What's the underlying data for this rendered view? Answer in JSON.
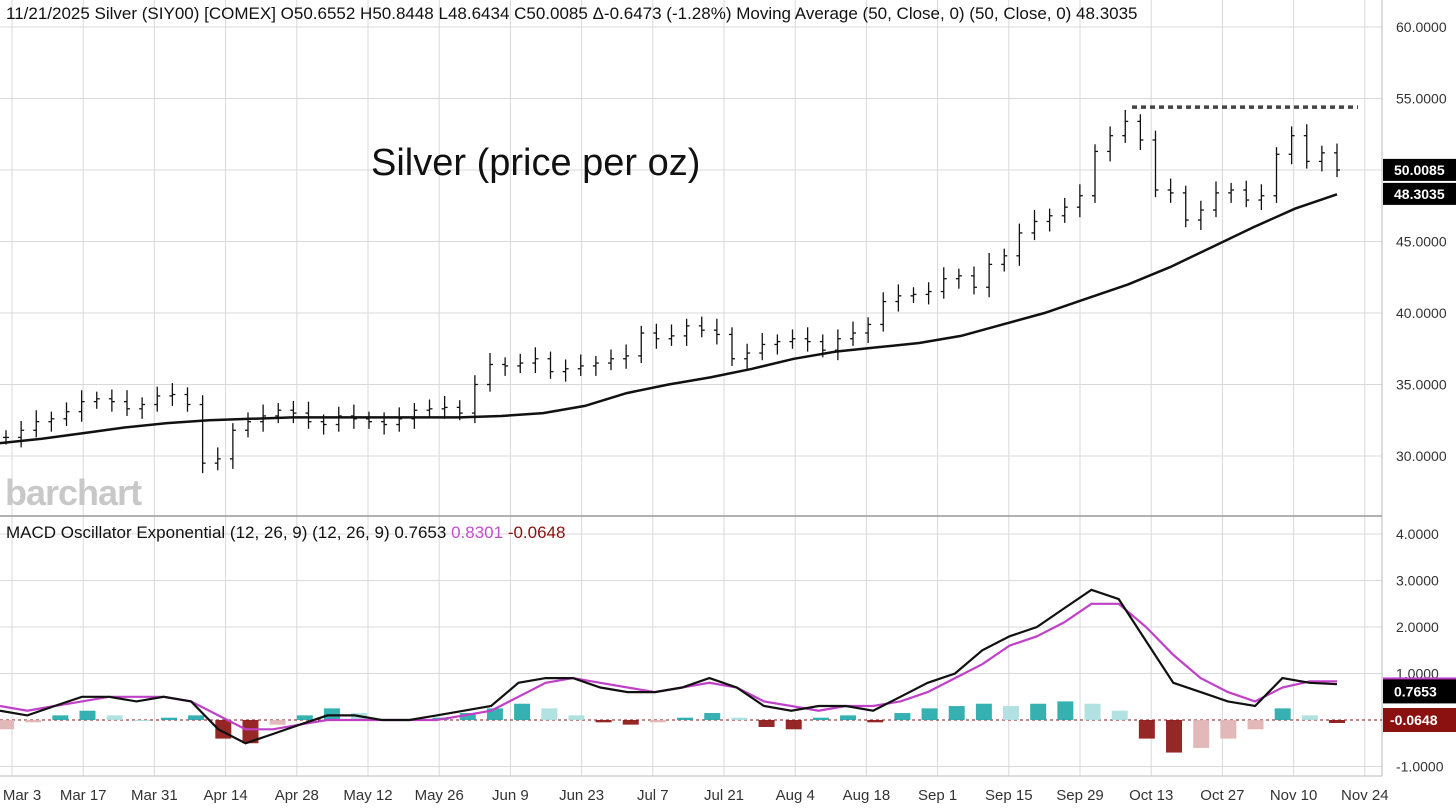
{
  "header": {
    "line": "11/21/2025 Silver (SIY00) [COMEX] O50.6552 H50.8448 L48.6434 C50.0085 Δ-0.6473 (-1.28%) Moving Average (50, Close, 0)  (50, Close, 0) 48.3035"
  },
  "annotation": "Silver (price per oz)",
  "logo": "barchart",
  "macd_header": {
    "label": "MACD Oscillator Exponential (12, 26, 9)  (12, 26, 9) 0.7653",
    "signal": "0.8301",
    "histogram": "-0.0648"
  },
  "colors": {
    "grid": "#d9d9d9",
    "price": "#111111",
    "ma": "#111111",
    "macd": "#111111",
    "signal": "#c040c8",
    "hist_pos": "#20a8a8",
    "hist_pos_light": "#a8dede",
    "hist_neg": "#8b1010",
    "hist_neg_light": "#e0b0b0",
    "resistance": "#444444"
  },
  "chart_data": [
    {
      "type": "ohlc",
      "title": "Silver (price per oz)",
      "symbol": "SIY00",
      "exchange": "COMEX",
      "date": "11/21/2025",
      "ohlc": {
        "open": 50.6552,
        "high": 50.8448,
        "low": 48.6434,
        "close": 50.0085,
        "change": -0.6473,
        "change_pct": -1.28
      },
      "y_ticks": [
        "60.0000",
        "55.0000",
        "50.0000",
        "45.0000",
        "40.0000",
        "35.0000",
        "30.0000"
      ],
      "ylim": [
        25,
        61
      ],
      "x_ticks": [
        "Mar 3",
        "Mar 17",
        "Mar 31",
        "Apr 14",
        "Apr 28",
        "May 12",
        "May 26",
        "Jun 9",
        "Jun 23",
        "Jul 7",
        "Jul 21",
        "Aug 4",
        "Aug 18",
        "Sep 1",
        "Sep 15",
        "Sep 29",
        "Oct 13",
        "Oct 27",
        "Nov 10",
        "Nov 24"
      ],
      "last_price_label": "50.0085",
      "ma_label": "48.3035",
      "resistance_level": 54.4,
      "price_close": [
        31.3,
        31.8,
        32.4,
        32.6,
        33.1,
        33.8,
        34.0,
        33.8,
        33.3,
        33.6,
        34.2,
        34.3,
        33.6,
        29.5,
        29.8,
        31.8,
        32.4,
        32.8,
        33.2,
        33.0,
        32.4,
        32.2,
        32.8,
        32.6,
        32.4,
        32.2,
        32.6,
        33.2,
        33.3,
        33.4,
        33.0,
        35.0,
        36.4,
        36.3,
        36.5,
        36.8,
        35.9,
        36.1,
        36.3,
        36.5,
        36.8,
        37.0,
        38.6,
        38.2,
        38.4,
        39.1,
        38.8,
        38.5,
        36.8,
        37.2,
        37.8,
        38.0,
        38.2,
        38.0,
        37.4,
        38.2,
        38.6,
        39.2,
        40.8,
        41.2,
        41.3,
        41.5,
        42.4,
        42.6,
        41.8,
        43.4,
        44.0,
        45.6,
        46.4,
        46.8,
        47.4,
        48.2,
        51.3,
        52.4,
        53.4,
        52.1,
        48.6,
        48.4,
        46.5,
        47.2,
        48.4,
        48.6,
        47.9,
        48.2,
        51.1,
        52.4,
        50.6,
        51.2,
        50.0
      ],
      "ma50": [
        30.9,
        31.2,
        31.6,
        32.0,
        32.3,
        32.5,
        32.6,
        32.7,
        32.7,
        32.7,
        32.7,
        32.7,
        32.8,
        33.0,
        33.5,
        34.4,
        35.0,
        35.5,
        36.1,
        36.8,
        37.3,
        37.6,
        37.9,
        38.4,
        39.2,
        40.0,
        41.0,
        42.0,
        43.2,
        44.6,
        46.0,
        47.3,
        48.3
      ]
    },
    {
      "type": "line",
      "title": "MACD Oscillator Exponential (12, 26, 9)",
      "y_ticks": [
        "4.0000",
        "3.0000",
        "2.0000",
        "1.0000",
        "-1.0000"
      ],
      "ylim": [
        -1.2,
        4.1
      ],
      "series": [
        {
          "name": "MACD",
          "last": 0.7653
        },
        {
          "name": "Signal",
          "last": 0.8301
        },
        {
          "name": "Histogram",
          "last": -0.0648
        }
      ],
      "macd": [
        0.2,
        0.1,
        0.3,
        0.5,
        0.5,
        0.4,
        0.5,
        0.4,
        -0.2,
        -0.5,
        -0.3,
        -0.1,
        0.1,
        0.1,
        0.0,
        0.0,
        0.1,
        0.2,
        0.3,
        0.8,
        0.9,
        0.9,
        0.7,
        0.6,
        0.6,
        0.7,
        0.9,
        0.7,
        0.3,
        0.2,
        0.3,
        0.3,
        0.2,
        0.5,
        0.8,
        1.0,
        1.5,
        1.8,
        2.0,
        2.4,
        2.8,
        2.6,
        1.7,
        0.8,
        0.6,
        0.4,
        0.3,
        0.9,
        0.8,
        0.77
      ],
      "signal": [
        0.3,
        0.2,
        0.3,
        0.4,
        0.5,
        0.5,
        0.5,
        0.4,
        0.1,
        -0.2,
        -0.2,
        -0.1,
        0.0,
        0.0,
        0.0,
        0.0,
        0.0,
        0.1,
        0.2,
        0.5,
        0.8,
        0.9,
        0.8,
        0.7,
        0.6,
        0.7,
        0.8,
        0.7,
        0.4,
        0.3,
        0.2,
        0.3,
        0.3,
        0.4,
        0.6,
        0.9,
        1.2,
        1.6,
        1.8,
        2.1,
        2.5,
        2.5,
        2.0,
        1.4,
        0.9,
        0.6,
        0.4,
        0.7,
        0.83,
        0.83
      ],
      "histogram": [
        -0.2,
        -0.05,
        0.1,
        0.2,
        0.1,
        0.0,
        0.05,
        0.1,
        -0.4,
        -0.5,
        -0.1,
        0.1,
        0.25,
        0.15,
        0.0,
        0.0,
        0.05,
        0.15,
        0.25,
        0.35,
        0.25,
        0.1,
        -0.05,
        -0.1,
        -0.05,
        0.05,
        0.15,
        0.05,
        -0.15,
        -0.2,
        0.05,
        0.1,
        -0.05,
        0.15,
        0.25,
        0.3,
        0.35,
        0.3,
        0.35,
        0.4,
        0.35,
        0.2,
        -0.4,
        -0.7,
        -0.6,
        -0.4,
        -0.2,
        0.25,
        0.1,
        -0.0648
      ]
    }
  ]
}
